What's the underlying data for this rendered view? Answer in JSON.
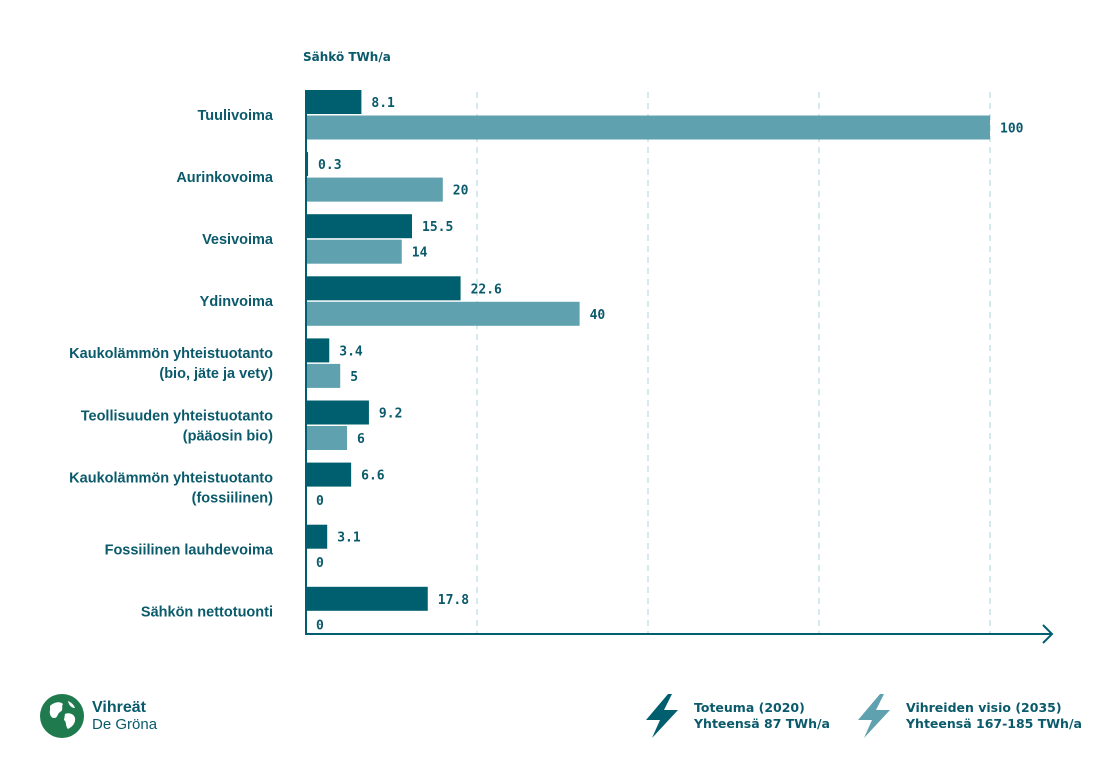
{
  "unit_label": "Sähkö TWh/a",
  "chart_data": {
    "type": "bar",
    "orientation": "horizontal",
    "categories": [
      [
        "Tuulivoima"
      ],
      [
        "Aurinkovoima"
      ],
      [
        "Vesivoima"
      ],
      [
        "Ydinvoima"
      ],
      [
        "Kaukolämmön yhteistuotanto",
        "(bio, jäte ja vety)"
      ],
      [
        "Teollisuuden yhteistuotanto",
        "(pääosin bio)"
      ],
      [
        "Kaukolämmön yhteistuotanto",
        "(fossiilinen)"
      ],
      [
        "Fossiilinen lauhdevoima"
      ],
      [
        "Sähkön nettotuonti"
      ]
    ],
    "series": [
      {
        "values": [
          8.1,
          0.3,
          15.5,
          22.6,
          3.4,
          9.2,
          6.6,
          3.1,
          17.8
        ],
        "labels": [
          "8.1",
          "0.3",
          "15.5",
          "22.6",
          "3.4",
          "9.2",
          "6.6",
          "3.1",
          "17.8"
        ],
        "color": "#005f6e"
      },
      {
        "values": [
          100,
          20,
          14,
          40,
          5,
          6,
          0,
          0,
          0
        ],
        "labels": [
          "100",
          "20",
          "14",
          "40",
          "5",
          "6",
          "0",
          "0",
          "0"
        ],
        "color": "#5fa1ae"
      }
    ],
    "xlim": [
      0,
      100
    ],
    "gridlines": [
      25,
      50,
      75,
      100
    ],
    "grid": "vertical dashed"
  },
  "legend": [
    {
      "line1": "Toteuma (2020)",
      "line2": "Yhteensä 87 TWh/a",
      "icon": "lightning-bolt-icon",
      "color": "#005f6e"
    },
    {
      "line1": "Vihreiden visio (2035)",
      "line2": "Yhteensä 167-185 TWh/a",
      "icon": "lightning-bolt-icon",
      "color": "#5fa1ae"
    }
  ],
  "logo": {
    "line1": "Vihreät",
    "line2": "De Gröna",
    "color": "#1f7a4d",
    "icon": "globe-leaf-icon"
  }
}
